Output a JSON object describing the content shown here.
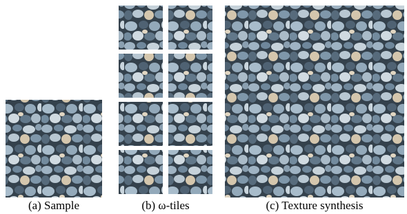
{
  "captions": [
    "(a) Sample",
    "(b) ω-tiles",
    "(c) Texture synthesis"
  ]
}
